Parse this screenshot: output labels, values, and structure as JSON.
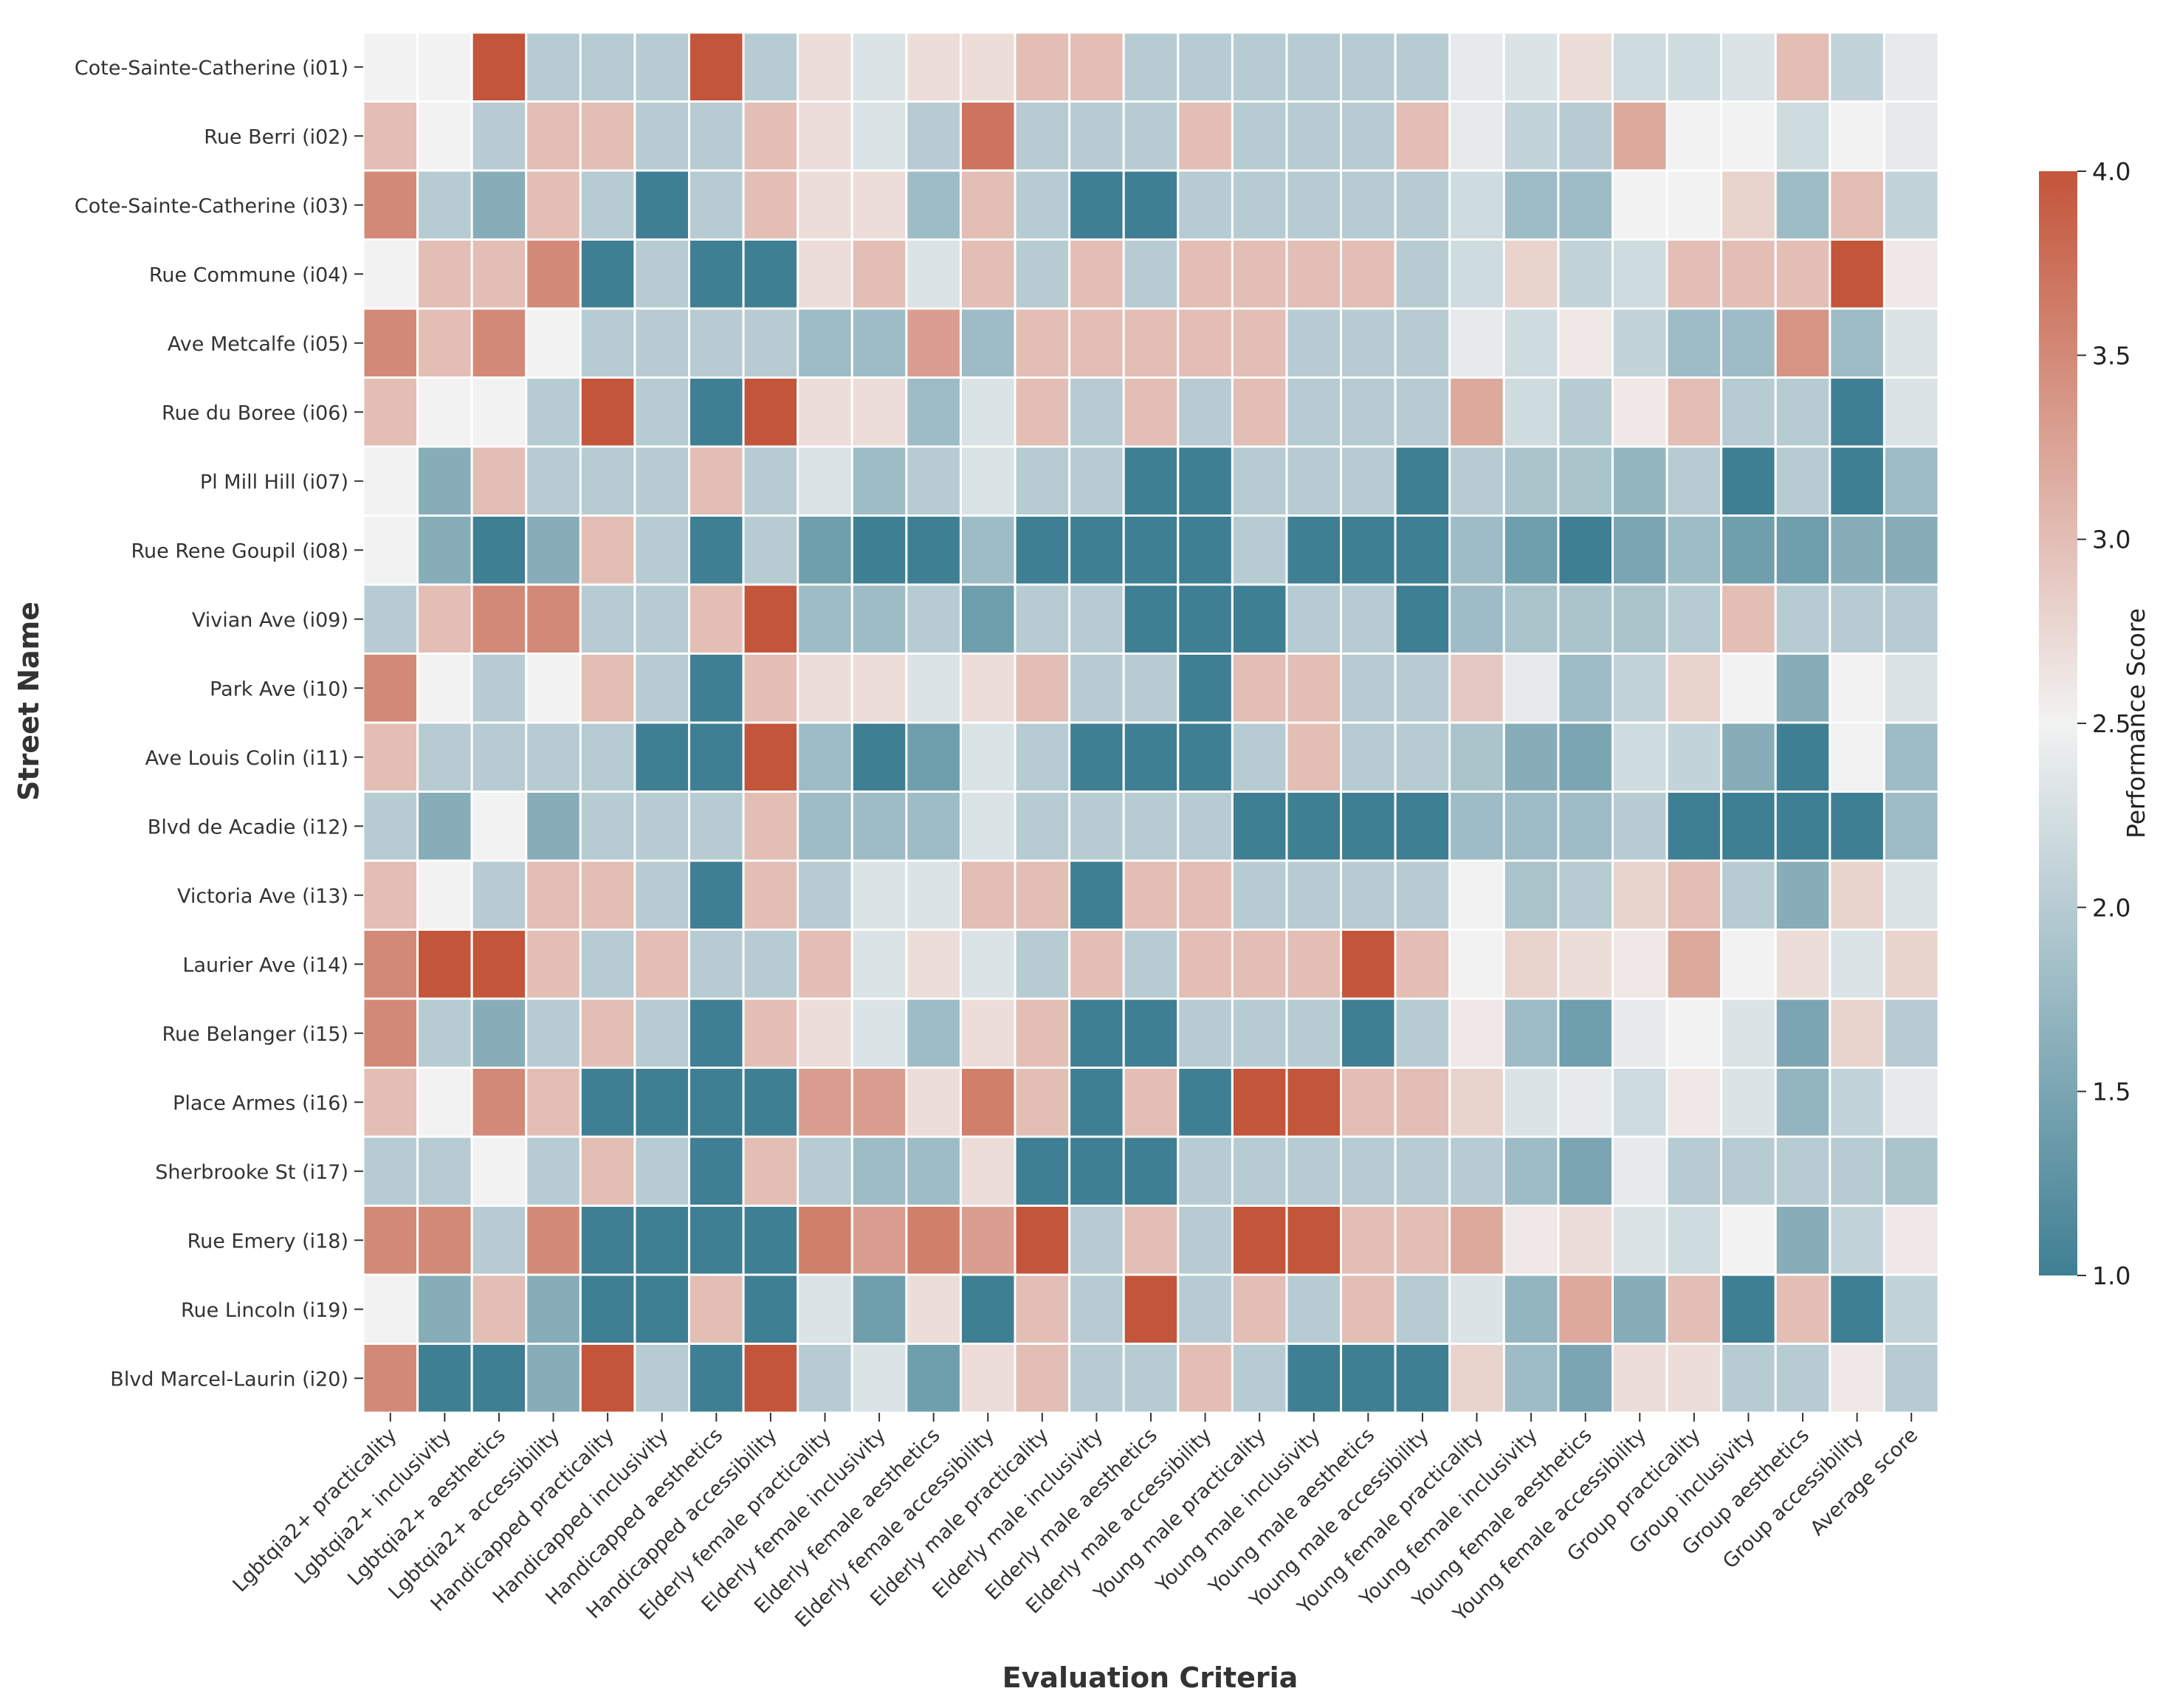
{
  "chart_data": {
    "type": "heatmap",
    "xlabel": "Evaluation Criteria",
    "ylabel": "Street Name",
    "colorbar": {
      "label": "Performance Score",
      "min": 1.0,
      "max": 4.0,
      "ticks": [
        "1.0",
        "1.5",
        "2.0",
        "2.5",
        "3.0",
        "3.5",
        "4.0"
      ],
      "low_color": "#3f7f93",
      "mid_color": "#f2f2f2",
      "high_color": "#c3553a"
    },
    "columns": [
      "Lgbtqia2+ practicality",
      "Lgbtqia2+ inclusivity",
      "Lgbtqia2+ aesthetics",
      "Lgbtqia2+ accessibility",
      "Handicapped practicality",
      "Handicapped inclusivity",
      "Handicapped aesthetics",
      "Handicapped accessibility",
      "Elderly female practicality",
      "Elderly female inclusivity",
      "Elderly female aesthetics",
      "Elderly female accessibility",
      "Elderly male practicality",
      "Elderly male inclusivity",
      "Elderly male aesthetics",
      "Elderly male accessibility",
      "Young male practicality",
      "Young male inclusivity",
      "Young male aesthetics",
      "Young male accessibility",
      "Young female practicality",
      "Young female inclusivity",
      "Young female aesthetics",
      "Young female accessibility",
      "Group practicality",
      "Group inclusivity",
      "Group aesthetics",
      "Group accessibility",
      "Average score"
    ],
    "rows": [
      "Cote-Sainte-Catherine (i01)",
      "Rue Berri (i02)",
      "Cote-Sainte-Catherine (i03)",
      "Rue Commune (i04)",
      "Ave Metcalfe (i05)",
      "Rue du Boree (i06)",
      "Pl Mill Hill (i07)",
      "Rue Rene Goupil (i08)",
      "Vivian Ave (i09)",
      "Park Ave (i10)",
      "Ave Louis Colin (i11)",
      "Blvd de Acadie (i12)",
      "Victoria Ave (i13)",
      "Laurier Ave (i14)",
      "Rue Belanger (i15)",
      "Place Armes (i16)",
      "Sherbrooke St (i17)",
      "Rue Emery (i18)",
      "Rue Lincoln (i19)",
      "Blvd Marcel-Laurin (i20)"
    ],
    "values": [
      [
        2.5,
        2.5,
        4.0,
        2.0,
        2.0,
        2.0,
        4.0,
        2.0,
        2.7,
        2.3,
        2.7,
        2.7,
        3.0,
        3.0,
        2.0,
        2.0,
        2.0,
        2.0,
        2.0,
        2.0,
        2.4,
        2.3,
        2.7,
        2.2,
        2.2,
        2.3,
        3.0,
        2.1,
        2.4
      ],
      [
        3.0,
        2.5,
        2.0,
        3.0,
        3.0,
        2.0,
        2.0,
        3.0,
        2.7,
        2.3,
        2.0,
        3.7,
        2.0,
        2.0,
        2.0,
        3.0,
        2.0,
        2.0,
        2.0,
        3.0,
        2.4,
        2.1,
        2.0,
        3.2,
        2.5,
        2.5,
        2.2,
        2.5,
        2.4
      ],
      [
        3.5,
        2.0,
        1.6,
        3.0,
        2.0,
        1.0,
        2.0,
        3.0,
        2.7,
        2.7,
        1.8,
        3.0,
        2.0,
        1.0,
        1.0,
        2.0,
        2.0,
        2.0,
        2.0,
        2.0,
        2.2,
        1.8,
        1.8,
        2.5,
        2.5,
        2.8,
        1.8,
        3.0,
        2.1
      ],
      [
        2.5,
        3.0,
        3.0,
        3.5,
        1.0,
        2.0,
        1.0,
        1.0,
        2.7,
        3.0,
        2.3,
        3.0,
        2.0,
        3.0,
        2.0,
        3.0,
        3.0,
        3.0,
        3.0,
        2.0,
        2.2,
        2.8,
        2.1,
        2.2,
        3.0,
        3.0,
        3.0,
        4.0,
        2.6
      ],
      [
        3.5,
        3.0,
        3.5,
        2.5,
        2.0,
        2.0,
        2.0,
        2.0,
        1.8,
        1.8,
        3.3,
        1.8,
        3.0,
        3.0,
        3.0,
        3.0,
        3.0,
        2.0,
        2.0,
        2.0,
        2.4,
        2.2,
        2.6,
        2.1,
        1.8,
        1.8,
        3.4,
        1.8,
        2.3
      ],
      [
        3.0,
        2.5,
        2.5,
        2.0,
        4.0,
        2.0,
        1.0,
        4.0,
        2.7,
        2.7,
        1.8,
        2.3,
        3.0,
        2.0,
        3.0,
        2.0,
        3.0,
        2.0,
        2.0,
        2.0,
        3.2,
        2.2,
        2.0,
        2.6,
        3.0,
        2.0,
        2.0,
        1.0,
        2.3
      ],
      [
        2.5,
        1.6,
        3.0,
        2.0,
        2.0,
        2.0,
        3.0,
        2.0,
        2.3,
        1.8,
        2.0,
        2.3,
        2.0,
        2.0,
        1.0,
        1.0,
        2.0,
        2.0,
        2.0,
        1.0,
        2.0,
        1.9,
        1.9,
        1.7,
        2.0,
        1.0,
        2.0,
        1.0,
        1.8
      ],
      [
        2.5,
        1.6,
        1.0,
        1.6,
        3.0,
        2.0,
        1.0,
        2.0,
        1.4,
        1.0,
        1.0,
        1.8,
        1.0,
        1.0,
        1.0,
        1.0,
        2.0,
        1.0,
        1.0,
        1.0,
        1.8,
        1.4,
        1.0,
        1.5,
        1.8,
        1.4,
        1.4,
        1.6,
        1.6
      ],
      [
        2.0,
        3.0,
        3.5,
        3.5,
        2.0,
        2.0,
        3.0,
        4.0,
        1.8,
        1.8,
        2.0,
        1.4,
        2.0,
        2.0,
        1.0,
        1.0,
        1.0,
        2.0,
        2.0,
        1.0,
        1.8,
        1.9,
        1.9,
        1.9,
        2.0,
        3.0,
        2.0,
        2.0,
        2.0
      ],
      [
        3.5,
        2.5,
        2.0,
        2.5,
        3.0,
        2.0,
        1.0,
        3.0,
        2.7,
        2.7,
        2.3,
        2.7,
        3.0,
        2.0,
        2.0,
        1.0,
        3.0,
        3.0,
        2.0,
        2.0,
        2.9,
        2.4,
        1.8,
        2.1,
        2.8,
        2.5,
        1.6,
        2.5,
        2.3
      ],
      [
        3.0,
        2.0,
        2.0,
        2.0,
        2.0,
        1.0,
        1.0,
        4.0,
        1.8,
        1.0,
        1.4,
        2.3,
        2.0,
        1.0,
        1.0,
        1.0,
        2.0,
        3.0,
        2.0,
        2.0,
        1.9,
        1.6,
        1.5,
        2.2,
        2.1,
        1.6,
        1.0,
        2.5,
        1.8
      ],
      [
        2.0,
        1.6,
        2.5,
        1.6,
        2.0,
        2.0,
        2.0,
        3.0,
        1.8,
        1.8,
        1.8,
        2.3,
        2.0,
        2.0,
        2.0,
        2.0,
        1.0,
        1.0,
        1.0,
        1.0,
        1.8,
        1.8,
        1.8,
        2.0,
        1.0,
        1.0,
        1.0,
        1.0,
        1.8
      ],
      [
        3.0,
        2.5,
        2.0,
        3.0,
        3.0,
        2.0,
        1.0,
        3.0,
        2.0,
        2.3,
        2.3,
        3.0,
        3.0,
        1.0,
        3.0,
        3.0,
        2.0,
        2.0,
        2.0,
        2.0,
        2.5,
        1.9,
        2.0,
        2.8,
        3.0,
        2.0,
        1.6,
        2.8,
        2.3
      ],
      [
        3.5,
        4.0,
        4.0,
        3.0,
        2.0,
        3.0,
        2.0,
        2.0,
        3.0,
        2.3,
        2.7,
        2.3,
        2.0,
        3.0,
        2.0,
        3.0,
        3.0,
        3.0,
        4.0,
        3.0,
        2.5,
        2.8,
        2.7,
        2.6,
        3.2,
        2.5,
        2.7,
        2.3,
        2.8
      ],
      [
        3.5,
        2.0,
        1.6,
        2.0,
        3.0,
        2.0,
        1.0,
        3.0,
        2.7,
        2.3,
        1.8,
        2.7,
        3.0,
        1.0,
        1.0,
        2.0,
        2.0,
        2.0,
        1.0,
        2.0,
        2.6,
        1.8,
        1.4,
        2.4,
        2.5,
        2.3,
        1.5,
        2.8,
        2.0
      ],
      [
        3.0,
        2.5,
        3.5,
        3.0,
        1.0,
        1.0,
        1.0,
        1.0,
        3.3,
        3.3,
        2.7,
        3.6,
        3.0,
        1.0,
        3.0,
        1.0,
        4.0,
        4.0,
        3.0,
        3.0,
        2.8,
        2.3,
        2.4,
        2.2,
        2.6,
        2.3,
        1.7,
        2.1,
        2.4
      ],
      [
        2.0,
        2.0,
        2.5,
        2.0,
        3.0,
        2.0,
        1.0,
        3.0,
        2.0,
        1.8,
        1.8,
        2.7,
        1.0,
        1.0,
        1.0,
        2.0,
        2.0,
        2.0,
        2.0,
        2.0,
        2.0,
        1.8,
        1.5,
        2.4,
        2.0,
        2.0,
        2.0,
        2.0,
        1.9
      ],
      [
        3.5,
        3.5,
        2.0,
        3.5,
        1.0,
        1.0,
        1.0,
        1.0,
        3.6,
        3.3,
        3.6,
        3.3,
        4.0,
        2.0,
        3.0,
        2.0,
        4.0,
        4.0,
        3.0,
        3.0,
        3.2,
        2.6,
        2.7,
        2.3,
        2.2,
        2.5,
        1.6,
        2.1,
        2.6
      ],
      [
        2.5,
        1.6,
        3.0,
        1.6,
        1.0,
        1.0,
        3.0,
        1.0,
        2.3,
        1.4,
        2.7,
        1.0,
        3.0,
        2.0,
        4.0,
        2.0,
        3.0,
        2.0,
        3.0,
        2.0,
        2.3,
        1.7,
        3.2,
        1.6,
        3.0,
        1.0,
        3.0,
        1.0,
        2.1
      ],
      [
        3.5,
        1.0,
        1.0,
        1.6,
        4.0,
        2.0,
        1.0,
        4.0,
        2.0,
        2.3,
        1.4,
        2.7,
        3.0,
        2.0,
        2.0,
        3.0,
        2.0,
        1.0,
        1.0,
        1.0,
        2.8,
        1.8,
        1.5,
        2.7,
        2.7,
        2.0,
        2.0,
        2.6,
        2.0
      ]
    ]
  }
}
